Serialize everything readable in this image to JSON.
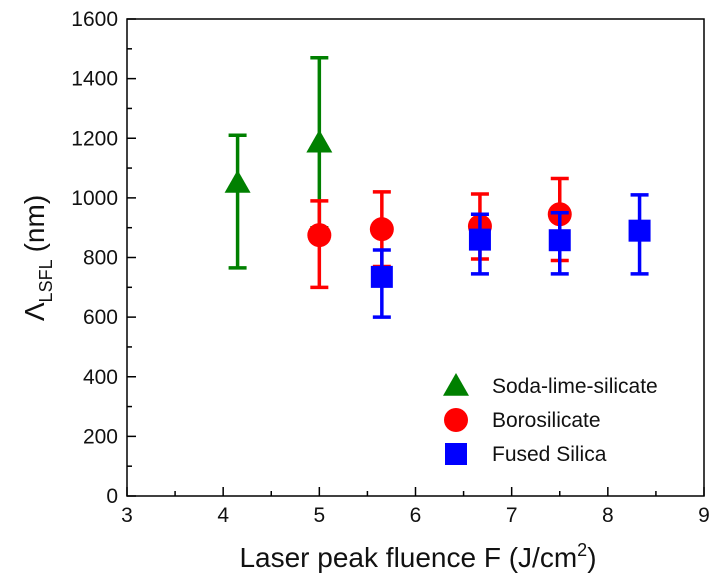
{
  "chart_data": {
    "type": "scatter",
    "xlabel_main": "Laser peak fluence F (J/cm",
    "xlabel_sup": "2",
    "xlabel_close": ")",
    "ylabel_main": "Λ",
    "ylabel_sub": "LSFL",
    "ylabel_unit": "(nm)",
    "xlim": [
      3,
      9
    ],
    "ylim": [
      0,
      1600
    ],
    "xticks": [
      3,
      4,
      5,
      6,
      7,
      8,
      9
    ],
    "yticks": [
      0,
      200,
      400,
      600,
      800,
      1000,
      1200,
      1400,
      1600
    ],
    "grid": false,
    "legend_position": "bottom-right",
    "series": [
      {
        "name": "Soda-lime-silicate",
        "marker": "triangle",
        "color": "#008000",
        "points": [
          {
            "x": 4.15,
            "y": 1050,
            "err_low": 765,
            "err_high": 1210
          },
          {
            "x": 5.0,
            "y": 1185,
            "err_low": 900,
            "err_high": 1470
          }
        ]
      },
      {
        "name": "Borosilicate",
        "marker": "circle",
        "color": "#ff0000",
        "points": [
          {
            "x": 5.0,
            "y": 875,
            "err_low": 700,
            "err_high": 990
          },
          {
            "x": 5.65,
            "y": 895,
            "err_low": 770,
            "err_high": 1020
          },
          {
            "x": 6.67,
            "y": 905,
            "err_low": 795,
            "err_high": 1013
          },
          {
            "x": 7.5,
            "y": 945,
            "err_low": 790,
            "err_high": 1065
          }
        ]
      },
      {
        "name": "Fused Silica",
        "marker": "square",
        "color": "#0000ff",
        "points": [
          {
            "x": 5.65,
            "y": 735,
            "err_low": 600,
            "err_high": 825
          },
          {
            "x": 6.67,
            "y": 860,
            "err_low": 745,
            "err_high": 945
          },
          {
            "x": 7.5,
            "y": 858,
            "err_low": 745,
            "err_high": 950
          },
          {
            "x": 8.33,
            "y": 890,
            "err_low": 745,
            "err_high": 1010
          }
        ]
      }
    ]
  }
}
